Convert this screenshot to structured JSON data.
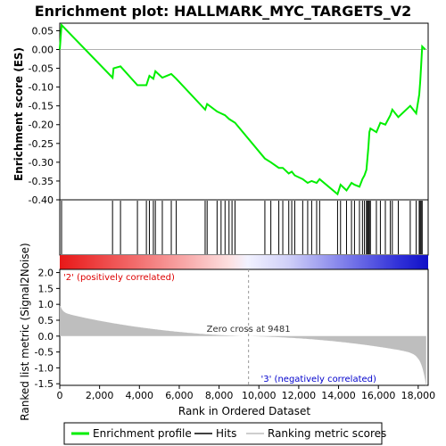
{
  "chart_data": {
    "type": "line",
    "title": "Enrichment plot: HALLMARK_MYC_TARGETS_V2",
    "xlabel": "Rank in Ordered Dataset",
    "ylabel_top": "Enrichment score (ES)",
    "ylabel_bottom": "Ranked list metric (Signal2Noise)",
    "xlim": [
      0,
      18500
    ],
    "x_ticks": [
      "0",
      "2,000",
      "4,000",
      "6,000",
      "8,000",
      "10,000",
      "12,000",
      "14,000",
      "16,000",
      "18,000"
    ],
    "x_tick_values": [
      0,
      2000,
      4000,
      6000,
      8000,
      10000,
      12000,
      14000,
      16000,
      18000
    ],
    "es_ylim": [
      -0.4,
      0.07
    ],
    "es_ticks": [
      "0.05",
      "0.00",
      "-0.05",
      "-0.10",
      "-0.15",
      "-0.20",
      "-0.25",
      "-0.30",
      "-0.35",
      "-0.40"
    ],
    "es_tick_values": [
      0.05,
      0.0,
      -0.05,
      -0.1,
      -0.15,
      -0.2,
      -0.25,
      -0.3,
      -0.35,
      -0.4
    ],
    "metric_ylim": [
      -1.55,
      2.1
    ],
    "metric_ticks": [
      "2.0",
      "1.5",
      "1.0",
      "0.5",
      "0.0",
      "-0.5",
      "-1.0",
      "-1.5"
    ],
    "metric_tick_values": [
      2.0,
      1.5,
      1.0,
      0.5,
      0.0,
      -0.5,
      -1.0,
      -1.5
    ],
    "hits": [
      90,
      2650,
      3050,
      3900,
      4350,
      4500,
      4700,
      4800,
      5150,
      5600,
      5850,
      7300,
      7400,
      7900,
      8100,
      8300,
      8500,
      8650,
      8800,
      10300,
      10600,
      11000,
      11200,
      11500,
      11650,
      11800,
      12200,
      12450,
      12650,
      12900,
      13050,
      13950,
      14100,
      14400,
      14650,
      14800,
      15050,
      15200,
      15300,
      15400,
      15450,
      15500,
      15550,
      15600,
      15900,
      16100,
      16350,
      16600,
      16700,
      17000,
      17600,
      17900,
      18050,
      18100,
      18150,
      18200
    ],
    "es_x": [
      0,
      90,
      2650,
      2700,
      3050,
      3900,
      4350,
      4500,
      4700,
      4800,
      5150,
      5600,
      5850,
      7300,
      7400,
      7900,
      8100,
      8300,
      8500,
      8650,
      8800,
      10300,
      10600,
      11000,
      11200,
      11500,
      11650,
      11800,
      12200,
      12450,
      12650,
      12900,
      13050,
      13950,
      14100,
      14400,
      14650,
      14800,
      15050,
      15200,
      15300,
      15400,
      15450,
      15500,
      15550,
      15600,
      15900,
      16100,
      16350,
      16600,
      16700,
      17000,
      17600,
      17900,
      18050,
      18100,
      18150,
      18200,
      18350
    ],
    "es_y": [
      0.0,
      0.065,
      -0.075,
      -0.05,
      -0.045,
      -0.095,
      -0.095,
      -0.07,
      -0.078,
      -0.058,
      -0.075,
      -0.065,
      -0.078,
      -0.16,
      -0.145,
      -0.165,
      -0.17,
      -0.175,
      -0.185,
      -0.19,
      -0.195,
      -0.29,
      -0.3,
      -0.315,
      -0.315,
      -0.33,
      -0.325,
      -0.335,
      -0.345,
      -0.355,
      -0.35,
      -0.355,
      -0.345,
      -0.385,
      -0.36,
      -0.375,
      -0.355,
      -0.36,
      -0.365,
      -0.345,
      -0.335,
      -0.32,
      -0.29,
      -0.26,
      -0.22,
      -0.21,
      -0.22,
      -0.195,
      -0.2,
      -0.175,
      -0.16,
      -0.18,
      -0.15,
      -0.17,
      -0.12,
      -0.085,
      -0.04,
      0.008,
      0.0
    ],
    "zero_cross": 9481,
    "zero_cross_label": "Zero cross at 9481",
    "pos_label": "'2' (positively correlated)",
    "neg_label": "'3' (negatively correlated)",
    "legend": [
      "Enrichment profile",
      "Hits",
      "Ranking metric scores"
    ],
    "colors": {
      "es_line": "#00ee00",
      "hits": "#000000",
      "metric_fill": "#bebebe",
      "pos_label": "#dd0000",
      "neg_label": "#0000cc",
      "zero_line": "#b0b0b0"
    }
  }
}
